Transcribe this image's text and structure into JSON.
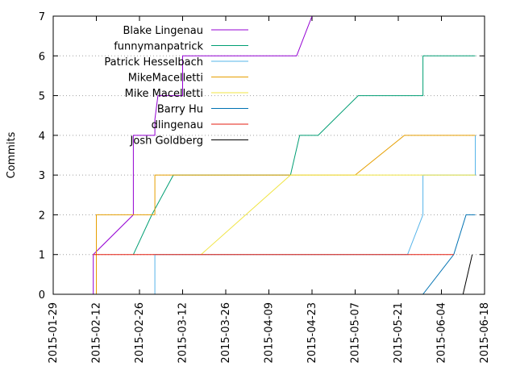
{
  "chart_data": {
    "type": "line",
    "title": "",
    "xlabel": "",
    "ylabel": "Commits",
    "x_type": "date",
    "xlim": [
      "2015-01-29",
      "2015-06-18"
    ],
    "ylim": [
      0,
      7
    ],
    "x_ticks": [
      "2015-01-29",
      "2015-02-12",
      "2015-02-26",
      "2015-03-12",
      "2015-03-26",
      "2015-04-09",
      "2015-04-23",
      "2015-05-07",
      "2015-05-21",
      "2015-06-04",
      "2015-06-18"
    ],
    "y_ticks": [
      0,
      1,
      2,
      3,
      4,
      5,
      6,
      7
    ],
    "grid": "horizontal dotted",
    "legend_position": "top-left, inside",
    "step_chart": true,
    "series": [
      {
        "name": "Blake Lingenau",
        "color": "#9400d3",
        "points": [
          [
            "2015-02-11",
            0
          ],
          [
            "2015-02-11",
            1
          ],
          [
            "2015-02-24",
            2
          ],
          [
            "2015-02-24",
            4
          ],
          [
            "2015-03-03",
            4
          ],
          [
            "2015-03-03",
            4.4
          ],
          [
            "2015-03-04",
            5
          ],
          [
            "2015-03-12",
            5
          ],
          [
            "2015-03-12",
            6
          ],
          [
            "2015-04-18",
            6
          ],
          [
            "2015-04-23",
            7
          ]
        ]
      },
      {
        "name": "funnymanpatrick",
        "color": "#009e73",
        "points": [
          [
            "2015-02-24",
            1
          ],
          [
            "2015-03-02",
            2
          ],
          [
            "2015-03-09",
            3
          ],
          [
            "2015-04-16",
            3
          ],
          [
            "2015-04-19",
            4
          ],
          [
            "2015-04-25",
            4
          ],
          [
            "2015-05-08",
            5
          ],
          [
            "2015-05-29",
            5
          ],
          [
            "2015-05-29",
            6
          ],
          [
            "2015-06-15",
            6
          ]
        ]
      },
      {
        "name": "Patrick Hesselbach",
        "color": "#56b4e9",
        "points": [
          [
            "2015-03-03",
            0
          ],
          [
            "2015-03-03",
            1
          ],
          [
            "2015-05-24",
            1
          ],
          [
            "2015-05-29",
            2
          ],
          [
            "2015-05-29",
            3
          ],
          [
            "2015-06-15",
            3
          ],
          [
            "2015-06-15",
            4
          ]
        ]
      },
      {
        "name": "MikeMacelletti",
        "color": "#e69f00",
        "points": [
          [
            "2015-02-12",
            0
          ],
          [
            "2015-02-12",
            2
          ],
          [
            "2015-03-03",
            2
          ],
          [
            "2015-03-03",
            3
          ],
          [
            "2015-05-07",
            3
          ],
          [
            "2015-05-23",
            4
          ],
          [
            "2015-06-15",
            4
          ]
        ]
      },
      {
        "name": "Mike Macelletti",
        "color": "#f0e442",
        "points": [
          [
            "2015-03-18",
            1
          ],
          [
            "2015-04-16",
            3
          ],
          [
            "2015-06-15",
            3
          ]
        ]
      },
      {
        "name": "Barry Hu",
        "color": "#0072b2",
        "points": [
          [
            "2015-05-29",
            0
          ],
          [
            "2015-06-08",
            1
          ],
          [
            "2015-06-12",
            2
          ],
          [
            "2015-06-15",
            2
          ]
        ]
      },
      {
        "name": "dlingenau",
        "color": "#e51e10",
        "points": [
          [
            "2015-02-11",
            1
          ],
          [
            "2015-06-08",
            1
          ]
        ]
      },
      {
        "name": "Josh Goldberg",
        "color": "#000000",
        "points": [
          [
            "2015-06-11",
            0
          ],
          [
            "2015-06-14",
            1
          ]
        ]
      }
    ]
  }
}
